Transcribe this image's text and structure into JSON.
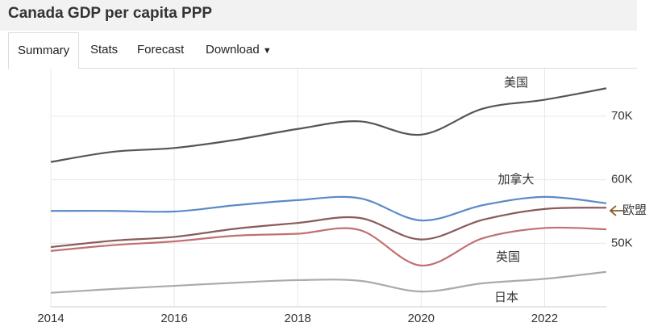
{
  "header": {
    "title": "Canada GDP per capita PPP"
  },
  "tabs": [
    "Summary",
    "Stats",
    "Forecast",
    "Download"
  ],
  "chart_data": {
    "type": "line",
    "x": [
      2014,
      2015,
      2016,
      2017,
      2018,
      2019,
      2020,
      2021,
      2022,
      2023
    ],
    "xlim": [
      2014,
      2023
    ],
    "xticks": [
      2014,
      2016,
      2018,
      2020,
      2022
    ],
    "ylim": [
      40000,
      77500
    ],
    "yticks": [
      {
        "value": 50000,
        "label": "50K"
      },
      {
        "value": 60000,
        "label": "60K"
      },
      {
        "value": 70000,
        "label": "70K"
      }
    ],
    "grid": true,
    "series": [
      {
        "name": "美国",
        "color": "#555555",
        "values": [
          62800,
          64400,
          65000,
          66300,
          68000,
          69200,
          67100,
          71200,
          72600,
          74400
        ]
      },
      {
        "name": "加拿大",
        "color": "#5b8ac6",
        "values": [
          55100,
          55100,
          55000,
          56000,
          56800,
          57100,
          53600,
          56000,
          57300,
          56300
        ]
      },
      {
        "name": "欧盟",
        "color": "#8b5a5a",
        "values": [
          49400,
          50400,
          51000,
          52300,
          53200,
          54000,
          50600,
          53700,
          55400,
          55600
        ]
      },
      {
        "name": "英国",
        "color": "#c07070",
        "values": [
          48800,
          49700,
          50300,
          51200,
          51500,
          52100,
          46500,
          50800,
          52400,
          52200
        ]
      },
      {
        "name": "日本",
        "color": "#aaaaaa",
        "values": [
          42200,
          42800,
          43300,
          43800,
          44200,
          44100,
          42400,
          43700,
          44400,
          45500
        ]
      }
    ]
  }
}
